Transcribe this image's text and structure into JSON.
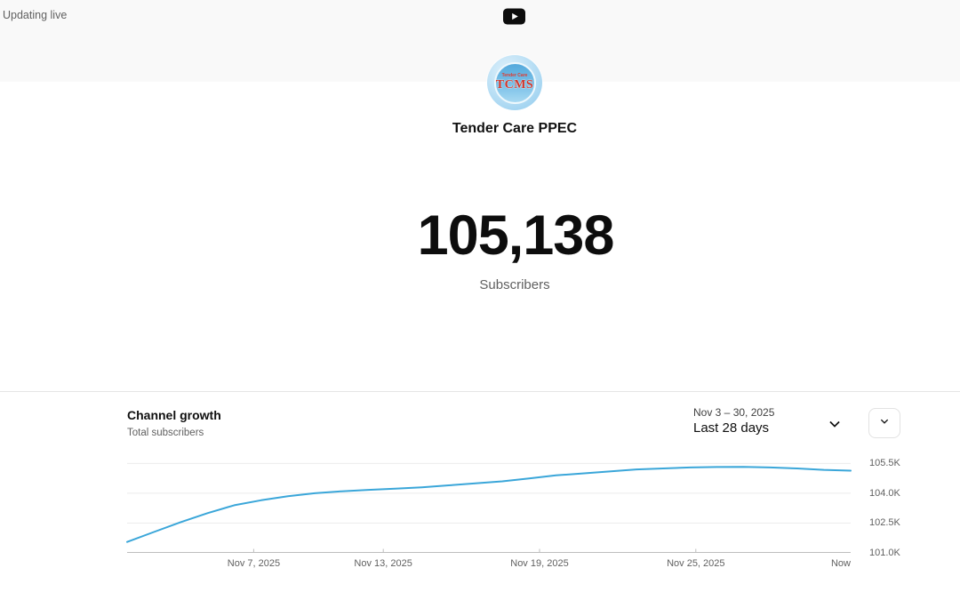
{
  "topbar": {
    "status_text": "Updating live"
  },
  "channel": {
    "name": "Tender Care PPEC",
    "avatar_text_small": "Tender Care",
    "avatar_text_big": "TCMS"
  },
  "counter": {
    "value": "105,138",
    "label": "Subscribers"
  },
  "growth": {
    "title": "Channel growth",
    "subtitle": "Total subscribers",
    "date_range": "Nov 3 – 30, 2025",
    "period_label": "Last 28 days"
  },
  "colors": {
    "line": "#3aa6d9",
    "grid": "#ececec",
    "axis": "#bdbdbd",
    "tick": "#bdbdbd",
    "topbar_bg": "#f9f9f9",
    "accent_text": "#606060"
  },
  "chart_data": {
    "type": "line",
    "title": "Channel growth",
    "ylabel": "Total subscribers",
    "xlabel": "",
    "grid": true,
    "legend": "none",
    "ylim": [
      101000,
      106100
    ],
    "x": [
      "Nov 3",
      "Nov 4",
      "Nov 5",
      "Nov 6",
      "Nov 7",
      "Nov 8",
      "Nov 9",
      "Nov 10",
      "Nov 11",
      "Nov 12",
      "Nov 13",
      "Nov 14",
      "Nov 15",
      "Nov 16",
      "Nov 17",
      "Nov 18",
      "Nov 19",
      "Nov 20",
      "Nov 21",
      "Nov 22",
      "Nov 23",
      "Nov 24",
      "Nov 25",
      "Nov 26",
      "Nov 27",
      "Nov 28",
      "Nov 29",
      "Now"
    ],
    "series": [
      {
        "name": "Total subscribers",
        "values": [
          101550,
          102050,
          102550,
          103000,
          103400,
          103650,
          103850,
          104000,
          104100,
          104170,
          104230,
          104300,
          104400,
          104500,
          104600,
          104750,
          104900,
          105000,
          105100,
          105200,
          105250,
          105300,
          105320,
          105330,
          105300,
          105250,
          105180,
          105138
        ]
      }
    ],
    "y_ticks": [
      {
        "label": "105.5K",
        "value": 105500
      },
      {
        "label": "104.0K",
        "value": 104000
      },
      {
        "label": "102.5K",
        "value": 102500
      },
      {
        "label": "101.0K",
        "value": 101000
      }
    ],
    "x_ticks": [
      {
        "label": "Nov 7, 2025",
        "pos": 0.175,
        "tick": true
      },
      {
        "label": "Nov 13, 2025",
        "pos": 0.354,
        "tick": true
      },
      {
        "label": "Nov 19, 2025",
        "pos": 0.57,
        "tick": true
      },
      {
        "label": "Nov 25, 2025",
        "pos": 0.786,
        "tick": true
      },
      {
        "label": "Now",
        "pos": 0.9865,
        "tick": false
      }
    ]
  }
}
